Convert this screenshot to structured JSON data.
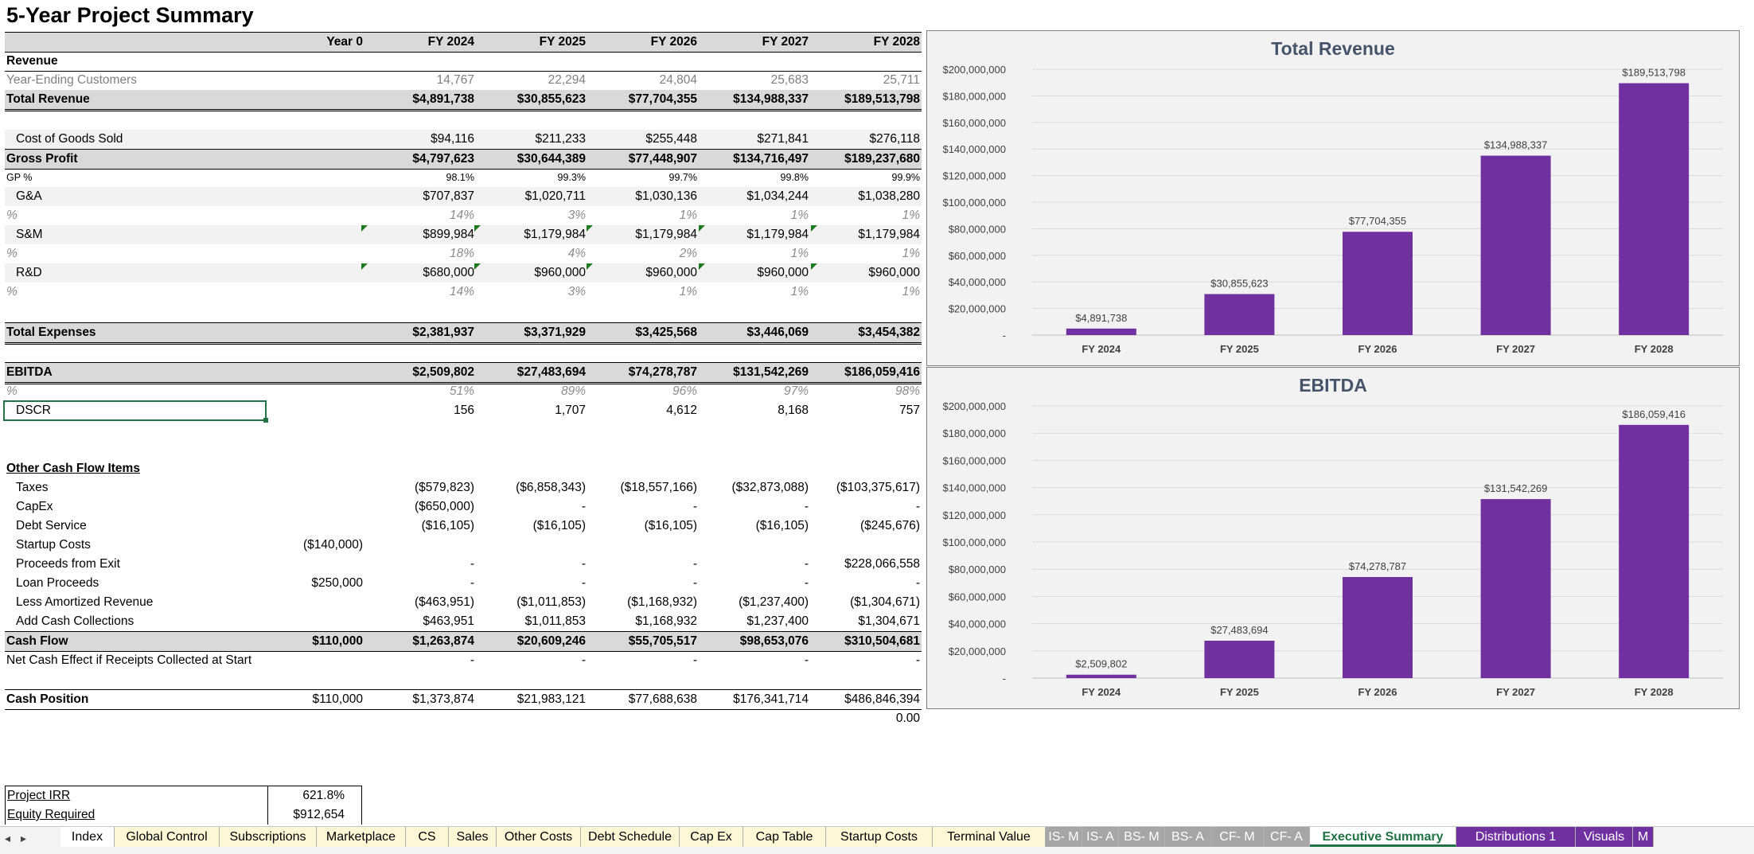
{
  "title": "5-Year Project Summary",
  "columns": [
    "Year 0",
    "FY 2024",
    "FY 2025",
    "FY 2026",
    "FY 2027",
    "FY 2028"
  ],
  "revenue": {
    "header": "Revenue",
    "customers": {
      "label": "Year-Ending Customers",
      "values": [
        "14,767",
        "22,294",
        "24,804",
        "25,683",
        "25,711"
      ]
    },
    "total": {
      "label": "Total Revenue",
      "values": [
        "$4,891,738",
        "$30,855,623",
        "$77,704,355",
        "$134,988,337",
        "$189,513,798"
      ]
    }
  },
  "cogs": {
    "label": "Cost of Goods Sold",
    "values": [
      "$94,116",
      "$211,233",
      "$255,448",
      "$271,841",
      "$276,118"
    ]
  },
  "gross_profit": {
    "label": "Gross Profit",
    "values": [
      "$4,797,623",
      "$30,644,389",
      "$77,448,907",
      "$134,716,497",
      "$189,237,680"
    ]
  },
  "gp_pct": {
    "label": "GP %",
    "values": [
      "98.1%",
      "99.3%",
      "99.7%",
      "99.8%",
      "99.9%"
    ]
  },
  "ga": {
    "label": "G&A",
    "values": [
      "$707,837",
      "$1,020,711",
      "$1,030,136",
      "$1,034,244",
      "$1,038,280"
    ],
    "pct_label": "%",
    "pct": [
      "14%",
      "3%",
      "1%",
      "1%",
      "1%"
    ]
  },
  "sm": {
    "label": "S&M",
    "values": [
      "$899,984",
      "$1,179,984",
      "$1,179,984",
      "$1,179,984",
      "$1,179,984"
    ],
    "pct_label": "%",
    "pct": [
      "18%",
      "4%",
      "2%",
      "1%",
      "1%"
    ]
  },
  "rd": {
    "label": "R&D",
    "values": [
      "$680,000",
      "$960,000",
      "$960,000",
      "$960,000",
      "$960,000"
    ],
    "pct_label": "%",
    "pct": [
      "14%",
      "3%",
      "1%",
      "1%",
      "1%"
    ]
  },
  "total_expenses": {
    "label": "Total Expenses",
    "values": [
      "$2,381,937",
      "$3,371,929",
      "$3,425,568",
      "$3,446,069",
      "$3,454,382"
    ]
  },
  "ebitda": {
    "label": "EBITDA",
    "values": [
      "$2,509,802",
      "$27,483,694",
      "$74,278,787",
      "$131,542,269",
      "$186,059,416"
    ],
    "pct_label": "%",
    "pct": [
      "51%",
      "89%",
      "96%",
      "97%",
      "98%"
    ]
  },
  "dscr": {
    "label": "DSCR",
    "values": [
      "156",
      "1,707",
      "4,612",
      "8,168",
      "757"
    ]
  },
  "other": {
    "header": "Other Cash Flow Items",
    "rows": [
      {
        "label": "Taxes",
        "y0": "",
        "values": [
          "($579,823)",
          "($6,858,343)",
          "($18,557,166)",
          "($32,873,088)",
          "($103,375,617)"
        ]
      },
      {
        "label": "CapEx",
        "y0": "",
        "values": [
          "($650,000)",
          "-",
          "-",
          "-",
          "-"
        ]
      },
      {
        "label": "Debt Service",
        "y0": "",
        "values": [
          "($16,105)",
          "($16,105)",
          "($16,105)",
          "($16,105)",
          "($245,676)"
        ]
      },
      {
        "label": "Startup Costs",
        "y0": "($140,000)",
        "values": [
          "",
          "",
          "",
          "",
          ""
        ]
      },
      {
        "label": "Proceeds from Exit",
        "y0": "",
        "values": [
          "-",
          "-",
          "-",
          "-",
          "$228,066,558"
        ]
      },
      {
        "label": "Loan Proceeds",
        "y0": "$250,000",
        "values": [
          "-",
          "-",
          "-",
          "-",
          "-"
        ]
      },
      {
        "label": "Less Amortized Revenue",
        "y0": "",
        "values": [
          "($463,951)",
          "($1,011,853)",
          "($1,168,932)",
          "($1,237,400)",
          "($1,304,671)"
        ]
      },
      {
        "label": "Add Cash Collections",
        "y0": "",
        "values": [
          "$463,951",
          "$1,011,853",
          "$1,168,932",
          "$1,237,400",
          "$1,304,671"
        ]
      }
    ]
  },
  "cash_flow": {
    "label": "Cash Flow",
    "y0": "$110,000",
    "values": [
      "$1,263,874",
      "$20,609,246",
      "$55,705,517",
      "$98,653,076",
      "$310,504,681"
    ]
  },
  "net_cash": {
    "label": "Net Cash Effect if Receipts Collected at Start",
    "values": [
      "-",
      "-",
      "-",
      "-",
      "-"
    ]
  },
  "cash_position": {
    "label": "Cash Position",
    "y0": "$110,000",
    "values": [
      "$1,373,874",
      "$21,983,121",
      "$77,688,638",
      "$176,341,714",
      "$486,846,394"
    ]
  },
  "check_value": "0.00",
  "irr": {
    "label": "Project IRR",
    "value": "621.8%"
  },
  "equity": {
    "label": "Equity Required",
    "value": "$912,654"
  },
  "chart_data": [
    {
      "type": "bar",
      "title": "Total Revenue",
      "categories": [
        "FY 2024",
        "FY 2025",
        "FY 2026",
        "FY 2027",
        "FY 2028"
      ],
      "values": [
        4891738,
        30855623,
        77704355,
        134988337,
        189513798
      ],
      "data_labels": [
        "$4,891,738",
        "$30,855,623",
        "$77,704,355",
        "$134,988,337",
        "$189,513,798"
      ],
      "ylim": [
        0,
        200000000
      ],
      "yticks": [
        "-",
        "$20,000,000",
        "$40,000,000",
        "$60,000,000",
        "$80,000,000",
        "$100,000,000",
        "$120,000,000",
        "$140,000,000",
        "$160,000,000",
        "$180,000,000",
        "$200,000,000"
      ],
      "color": "#7030a0",
      "grid": true
    },
    {
      "type": "bar",
      "title": "EBITDA",
      "categories": [
        "FY 2024",
        "FY 2025",
        "FY 2026",
        "FY 2027",
        "FY 2028"
      ],
      "values": [
        2509802,
        27483694,
        74278787,
        131542269,
        186059416
      ],
      "data_labels": [
        "$2,509,802",
        "$27,483,694",
        "$74,278,787",
        "$131,542,269",
        "$186,059,416"
      ],
      "ylim": [
        0,
        200000000
      ],
      "yticks": [
        "-",
        "$20,000,000",
        "$40,000,000",
        "$60,000,000",
        "$80,000,000",
        "$100,000,000",
        "$120,000,000",
        "$140,000,000",
        "$160,000,000",
        "$180,000,000",
        "$200,000,000"
      ],
      "color": "#7030a0",
      "grid": true
    }
  ],
  "tabs": {
    "nav": [
      "◂",
      "▸"
    ],
    "items": [
      {
        "label": "Index",
        "style": "white"
      },
      {
        "label": "Global Control",
        "style": "yellow"
      },
      {
        "label": "Subscriptions",
        "style": "yellow"
      },
      {
        "label": "Marketplace",
        "style": "yellow"
      },
      {
        "label": "CS",
        "style": "yellow"
      },
      {
        "label": "Sales",
        "style": "yellow"
      },
      {
        "label": "Other Costs",
        "style": "yellow"
      },
      {
        "label": "Debt Schedule",
        "style": "yellow"
      },
      {
        "label": "Cap Ex",
        "style": "yellow"
      },
      {
        "label": "Cap Table",
        "style": "yellow"
      },
      {
        "label": "Startup Costs",
        "style": "yellow"
      },
      {
        "label": "Terminal Value",
        "style": "yellow"
      },
      {
        "label": "IS- M",
        "style": "gray"
      },
      {
        "label": "IS- A",
        "style": "gray"
      },
      {
        "label": "BS- M",
        "style": "gray"
      },
      {
        "label": "BS- A",
        "style": "gray"
      },
      {
        "label": "CF- M",
        "style": "gray"
      },
      {
        "label": "CF- A",
        "style": "gray"
      },
      {
        "label": "Executive Summary",
        "style": "active"
      },
      {
        "label": "Distributions 1",
        "style": "purple"
      },
      {
        "label": "Visuals",
        "style": "purple"
      },
      {
        "label": "M",
        "style": "purple"
      }
    ]
  }
}
